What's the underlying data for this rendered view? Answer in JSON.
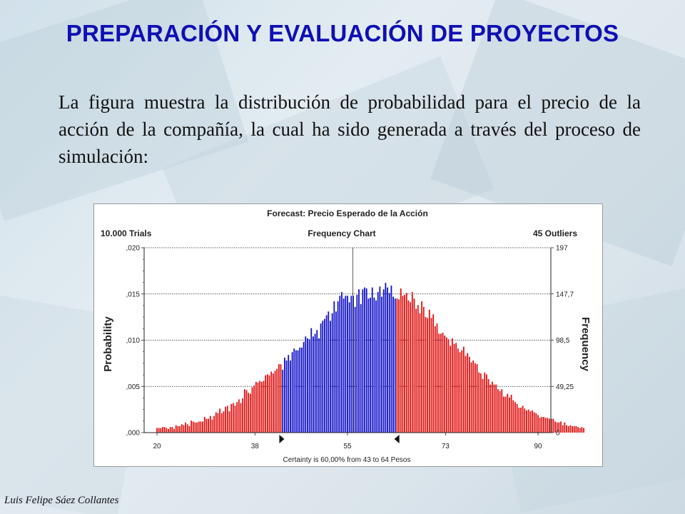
{
  "slide": {
    "title": "PREPARACIÓN Y EVALUACIÓN DE PROYECTOS",
    "body": "La figura muestra la distribución de probabilidad para el precio de la acción de la compañía, la cual ha sido generada a través del proceso de simulación:",
    "footer": "Luis Felipe Sáez Collantes"
  },
  "chart_data": {
    "type": "bar",
    "title": "Forecast: Precio Esperado de la Acción",
    "header_left": "10.000 Trials",
    "header_center": "Frequency Chart",
    "header_right": "45 Outliers",
    "ylabel_left": "Probability",
    "ylabel_right": "Frequency",
    "y_left_ticks": [
      ",000",
      ",005",
      ",010",
      ",015",
      ",020"
    ],
    "y_right_ticks": [
      "0",
      "49,25",
      "98,5",
      "147,7",
      "197"
    ],
    "x_ticks": [
      20,
      38,
      55,
      73,
      90
    ],
    "xlim": [
      20,
      90
    ],
    "ylim": [
      0,
      0.02
    ],
    "certainty_text": "Certainty is 60,00% from 43 to 64 Pesos",
    "certainty_range": [
      43,
      64
    ],
    "colors": {
      "outside": "#e01010",
      "inside": "#1010c8",
      "grid": "#222222"
    },
    "bin_width": 0.35,
    "x_start": 20,
    "values": [
      0.0005,
      0.0005,
      0.0005,
      0.0006,
      0.0006,
      0.0005,
      0.0004,
      0.0006,
      0.0006,
      0.0004,
      0.0008,
      0.0007,
      0.0007,
      0.0009,
      0.0008,
      0.0011,
      0.0009,
      0.0007,
      0.0013,
      0.0012,
      0.0011,
      0.0011,
      0.0012,
      0.0012,
      0.0012,
      0.0017,
      0.0015,
      0.0015,
      0.0018,
      0.0014,
      0.0018,
      0.0022,
      0.0021,
      0.0026,
      0.0021,
      0.0023,
      0.0028,
      0.0029,
      0.0023,
      0.0031,
      0.0032,
      0.0029,
      0.0033,
      0.0036,
      0.0032,
      0.0037,
      0.0047,
      0.0046,
      0.0043,
      0.0042,
      0.0049,
      0.0051,
      0.0055,
      0.0054,
      0.0056,
      0.0055,
      0.0056,
      0.0062,
      0.0063,
      0.0062,
      0.0066,
      0.0064,
      0.0067,
      0.0069,
      0.0074,
      0.0074,
      0.0068,
      0.0081,
      0.0078,
      0.0084,
      0.0078,
      0.0087,
      0.0091,
      0.0089,
      0.0089,
      0.0092,
      0.0092,
      0.0098,
      0.0104,
      0.0102,
      0.0101,
      0.0113,
      0.0104,
      0.0107,
      0.0111,
      0.0102,
      0.0118,
      0.0121,
      0.0123,
      0.0127,
      0.0131,
      0.0121,
      0.0129,
      0.0142,
      0.0131,
      0.0142,
      0.0148,
      0.0152,
      0.0145,
      0.0148,
      0.0148,
      0.0141,
      0.0148,
      0.0148,
      0.0136,
      0.0149,
      0.0155,
      0.0139,
      0.0155,
      0.0157,
      0.0156,
      0.0145,
      0.0146,
      0.0157,
      0.0146,
      0.0143,
      0.0152,
      0.0158,
      0.0147,
      0.0155,
      0.0162,
      0.0157,
      0.0151,
      0.0159,
      0.0147,
      0.0145,
      0.0145,
      0.0144,
      0.0156,
      0.0148,
      0.0149,
      0.0151,
      0.0143,
      0.0141,
      0.0152,
      0.0145,
      0.0134,
      0.0138,
      0.0129,
      0.0142,
      0.0136,
      0.0125,
      0.0124,
      0.0133,
      0.0124,
      0.0128,
      0.0115,
      0.0118,
      0.0107,
      0.0107,
      0.0108,
      0.0105,
      0.0103,
      0.0101,
      0.0094,
      0.0102,
      0.0096,
      0.0097,
      0.0091,
      0.0087,
      0.0089,
      0.0093,
      0.0083,
      0.0086,
      0.0082,
      0.0076,
      0.0078,
      0.0075,
      0.0074,
      0.0065,
      0.0064,
      0.0058,
      0.0065,
      0.0063,
      0.0058,
      0.0052,
      0.0055,
      0.0052,
      0.0052,
      0.0047,
      0.0045,
      0.0047,
      0.0039,
      0.0039,
      0.0042,
      0.0038,
      0.0041,
      0.0035,
      0.0033,
      0.0031,
      0.0027,
      0.0027,
      0.0029,
      0.0026,
      0.0024,
      0.0025,
      0.0023,
      0.0024,
      0.0022,
      0.0021,
      0.0019,
      0.0016,
      0.0017,
      0.0017,
      0.0016,
      0.0016,
      0.0015,
      0.0015,
      0.0015,
      0.0012,
      0.0011,
      0.0011,
      0.0012,
      0.0008,
      0.0011,
      0.0008,
      0.0007,
      0.0008,
      0.0007,
      0.0007,
      0.0007,
      0.0006,
      0.0005,
      0.0006,
      0.0005
    ]
  }
}
